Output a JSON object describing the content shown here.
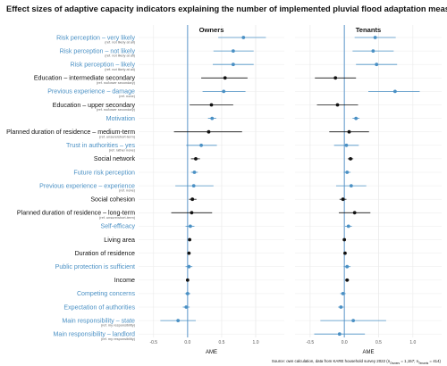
{
  "chart_data": {
    "type": "scatter",
    "subtype": "coefficient-plot",
    "title": "Effect sizes of adaptive capacity indicators explaining the number of implemented pluvial flood adaptation measures",
    "xlabel": "AME",
    "xlim": [
      -0.72,
      1.42
    ],
    "xticks": [
      -0.5,
      0.0,
      0.5,
      1.0
    ],
    "xtick_labels": [
      "-0.5",
      "0.0",
      "0.5",
      "1.0"
    ],
    "grid": true,
    "panels": [
      "Owners",
      "Tenants"
    ],
    "colors": {
      "black": "#111111",
      "blue": "#4a90c4",
      "zero_line": "#6a9fcf",
      "grid": "#ebebeb"
    },
    "indicators": [
      {
        "label": "Risk perception – very likely",
        "ref": "(ref. not likely at all)",
        "color": "blue"
      },
      {
        "label": "Risk perception – not likely",
        "ref": "(ref. not likely at all)",
        "color": "blue"
      },
      {
        "label": "Risk perception – likely",
        "ref": "(ref. not likely at all)",
        "color": "blue"
      },
      {
        "label": "Education – intermediate secondary",
        "ref": "(ref. no/lower secondary)",
        "color": "black"
      },
      {
        "label": "Previous experience – damage",
        "ref": "(ref. none)",
        "color": "blue"
      },
      {
        "label": "Education – upper secondary",
        "ref": "(ref. no/lower secondary)",
        "color": "black"
      },
      {
        "label": "Motivation",
        "ref": "",
        "color": "blue"
      },
      {
        "label": "Planned duration of residence – medium-term",
        "ref": "(ref. unsure/short-term)",
        "color": "black"
      },
      {
        "label": "Trust in authorities – yes",
        "ref": "(ref. rather none)",
        "color": "blue"
      },
      {
        "label": "Social network",
        "ref": "",
        "color": "black"
      },
      {
        "label": "Future risk perception",
        "ref": "",
        "color": "blue"
      },
      {
        "label": "Previous experience – experience",
        "ref": "(ref. none)",
        "color": "blue"
      },
      {
        "label": "Social cohesion",
        "ref": "",
        "color": "black"
      },
      {
        "label": "Planned duration of residence – long-term",
        "ref": "(ref. unsure/short-term)",
        "color": "black"
      },
      {
        "label": "Self-efficacy",
        "ref": "",
        "color": "blue"
      },
      {
        "label": "Living area",
        "ref": "",
        "color": "black"
      },
      {
        "label": "Duration of residence",
        "ref": "",
        "color": "black"
      },
      {
        "label": "Public protection is sufficient",
        "ref": "",
        "color": "blue"
      },
      {
        "label": "Income",
        "ref": "",
        "color": "black"
      },
      {
        "label": "Competing concerns",
        "ref": "",
        "color": "blue"
      },
      {
        "label": "Expectation of authorities",
        "ref": "",
        "color": "blue"
      },
      {
        "label": "Main responsibility – state",
        "ref": "(ref. my responsibility)",
        "color": "blue"
      },
      {
        "label": "Main responsibility – landlord",
        "ref": "(ref. my responsibility)",
        "color": "blue"
      }
    ],
    "series": [
      {
        "panel": "Owners",
        "estimates": [
          0.82,
          0.67,
          0.67,
          0.55,
          0.53,
          0.35,
          0.36,
          0.31,
          0.2,
          0.12,
          0.1,
          0.09,
          0.07,
          0.06,
          0.04,
          0.03,
          0.02,
          0.02,
          0.0,
          0.0,
          -0.02,
          -0.14,
          null
        ],
        "ci_low": [
          0.45,
          0.38,
          0.37,
          0.2,
          0.22,
          0.03,
          0.3,
          -0.2,
          -0.02,
          0.05,
          0.05,
          -0.18,
          0.02,
          -0.24,
          -0.03,
          null,
          null,
          -0.03,
          null,
          -0.04,
          -0.07,
          -0.4,
          null
        ],
        "ci_high": [
          1.15,
          0.97,
          0.97,
          0.88,
          0.85,
          0.67,
          0.42,
          0.8,
          0.43,
          0.18,
          0.15,
          0.38,
          0.13,
          0.36,
          0.1,
          null,
          null,
          0.07,
          null,
          0.04,
          0.03,
          0.12,
          null
        ]
      },
      {
        "panel": "Tenants",
        "estimates": [
          0.45,
          0.42,
          0.47,
          -0.13,
          0.74,
          -0.1,
          0.17,
          0.07,
          0.03,
          0.09,
          0.04,
          0.1,
          -0.02,
          0.15,
          0.06,
          0.0,
          0.01,
          0.04,
          0.04,
          -0.02,
          -0.05,
          0.13,
          -0.07
        ],
        "ci_low": [
          0.15,
          0.12,
          0.17,
          -0.43,
          0.35,
          -0.4,
          0.12,
          -0.22,
          -0.15,
          0.05,
          -0.01,
          -0.12,
          -0.07,
          -0.08,
          0.01,
          null,
          null,
          -0.01,
          0.01,
          -0.06,
          -0.09,
          -0.35,
          -0.44
        ],
        "ci_high": [
          0.75,
          0.72,
          0.77,
          0.17,
          1.1,
          0.2,
          0.22,
          0.36,
          0.21,
          0.13,
          0.09,
          0.32,
          0.03,
          0.38,
          0.11,
          null,
          null,
          0.09,
          0.07,
          0.02,
          -0.01,
          0.61,
          0.3
        ]
      }
    ],
    "source": "Source: own calculation, data from KARE household survey 2022 (n",
    "source_sub1": "Owners",
    "source_mid": " = 1,157; n",
    "source_sub2": "Tenants",
    "source_end": " = 414)"
  }
}
